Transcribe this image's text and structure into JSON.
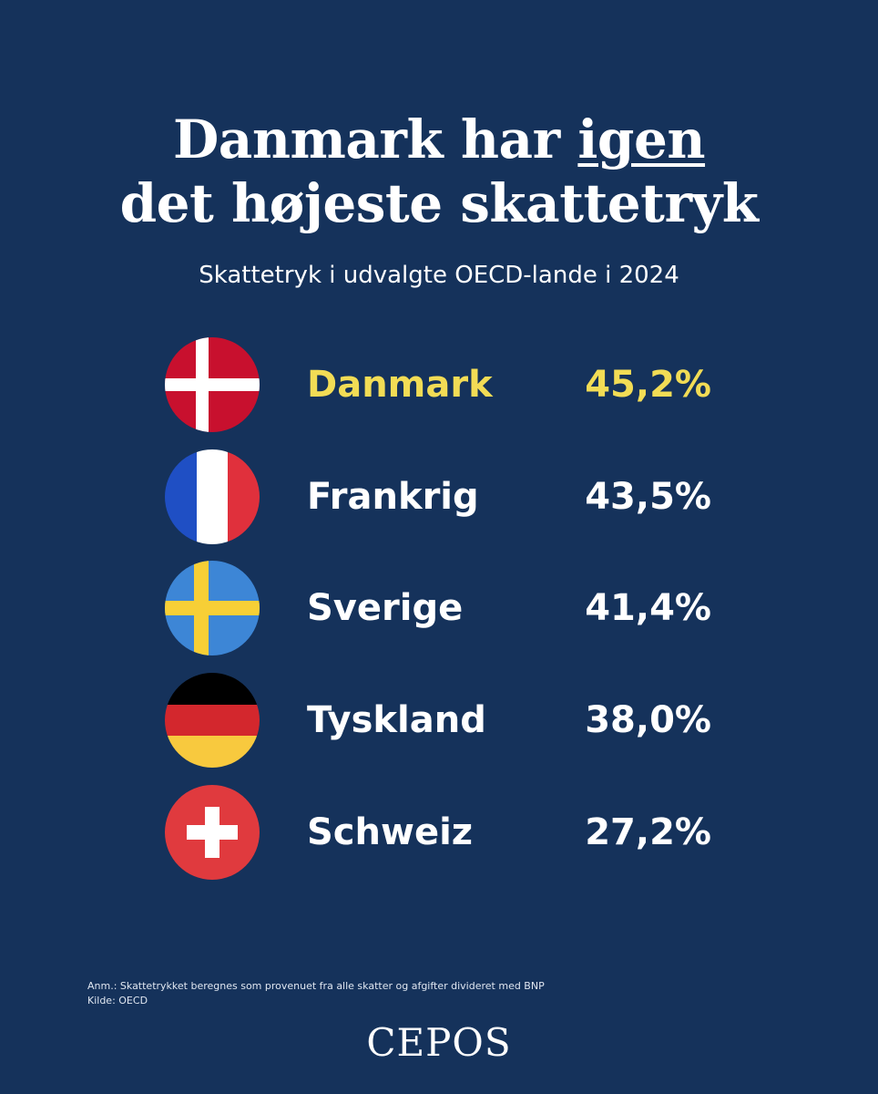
{
  "title": {
    "line1_prefix": "Danmark har ",
    "line1_emphasis": "igen",
    "line2": "det højeste skattetryk"
  },
  "subtitle": "Skattetryk i udvalgte OECD-lande i 2024",
  "colors": {
    "background": "#15325b",
    "highlight": "#f2dc55",
    "text": "#ffffff"
  },
  "chart_data": {
    "type": "table",
    "title": "Danmark har igen det højeste skattetryk",
    "subtitle": "Skattetryk i udvalgte OECD-lande i 2024",
    "categories": [
      "Danmark",
      "Frankrig",
      "Sverige",
      "Tyskland",
      "Schweiz"
    ],
    "values": [
      45.2,
      43.5,
      41.4,
      38.0,
      27.2
    ]
  },
  "rows": [
    {
      "country": "Danmark",
      "value": "45,2%",
      "flag": "denmark-flag-icon",
      "highlight": true
    },
    {
      "country": "Frankrig",
      "value": "43,5%",
      "flag": "france-flag-icon",
      "highlight": false
    },
    {
      "country": "Sverige",
      "value": "41,4%",
      "flag": "sweden-flag-icon",
      "highlight": false
    },
    {
      "country": "Tyskland",
      "value": "38,0%",
      "flag": "germany-flag-icon",
      "highlight": false
    },
    {
      "country": "Schweiz",
      "value": "27,2%",
      "flag": "switzerland-flag-icon",
      "highlight": false
    }
  ],
  "footnote": {
    "note": "Anm.: Skattetrykket beregnes som provenuet fra alle skatter og afgifter divideret med BNP",
    "source": "Kilde: OECD"
  },
  "logo": "CEPOS"
}
